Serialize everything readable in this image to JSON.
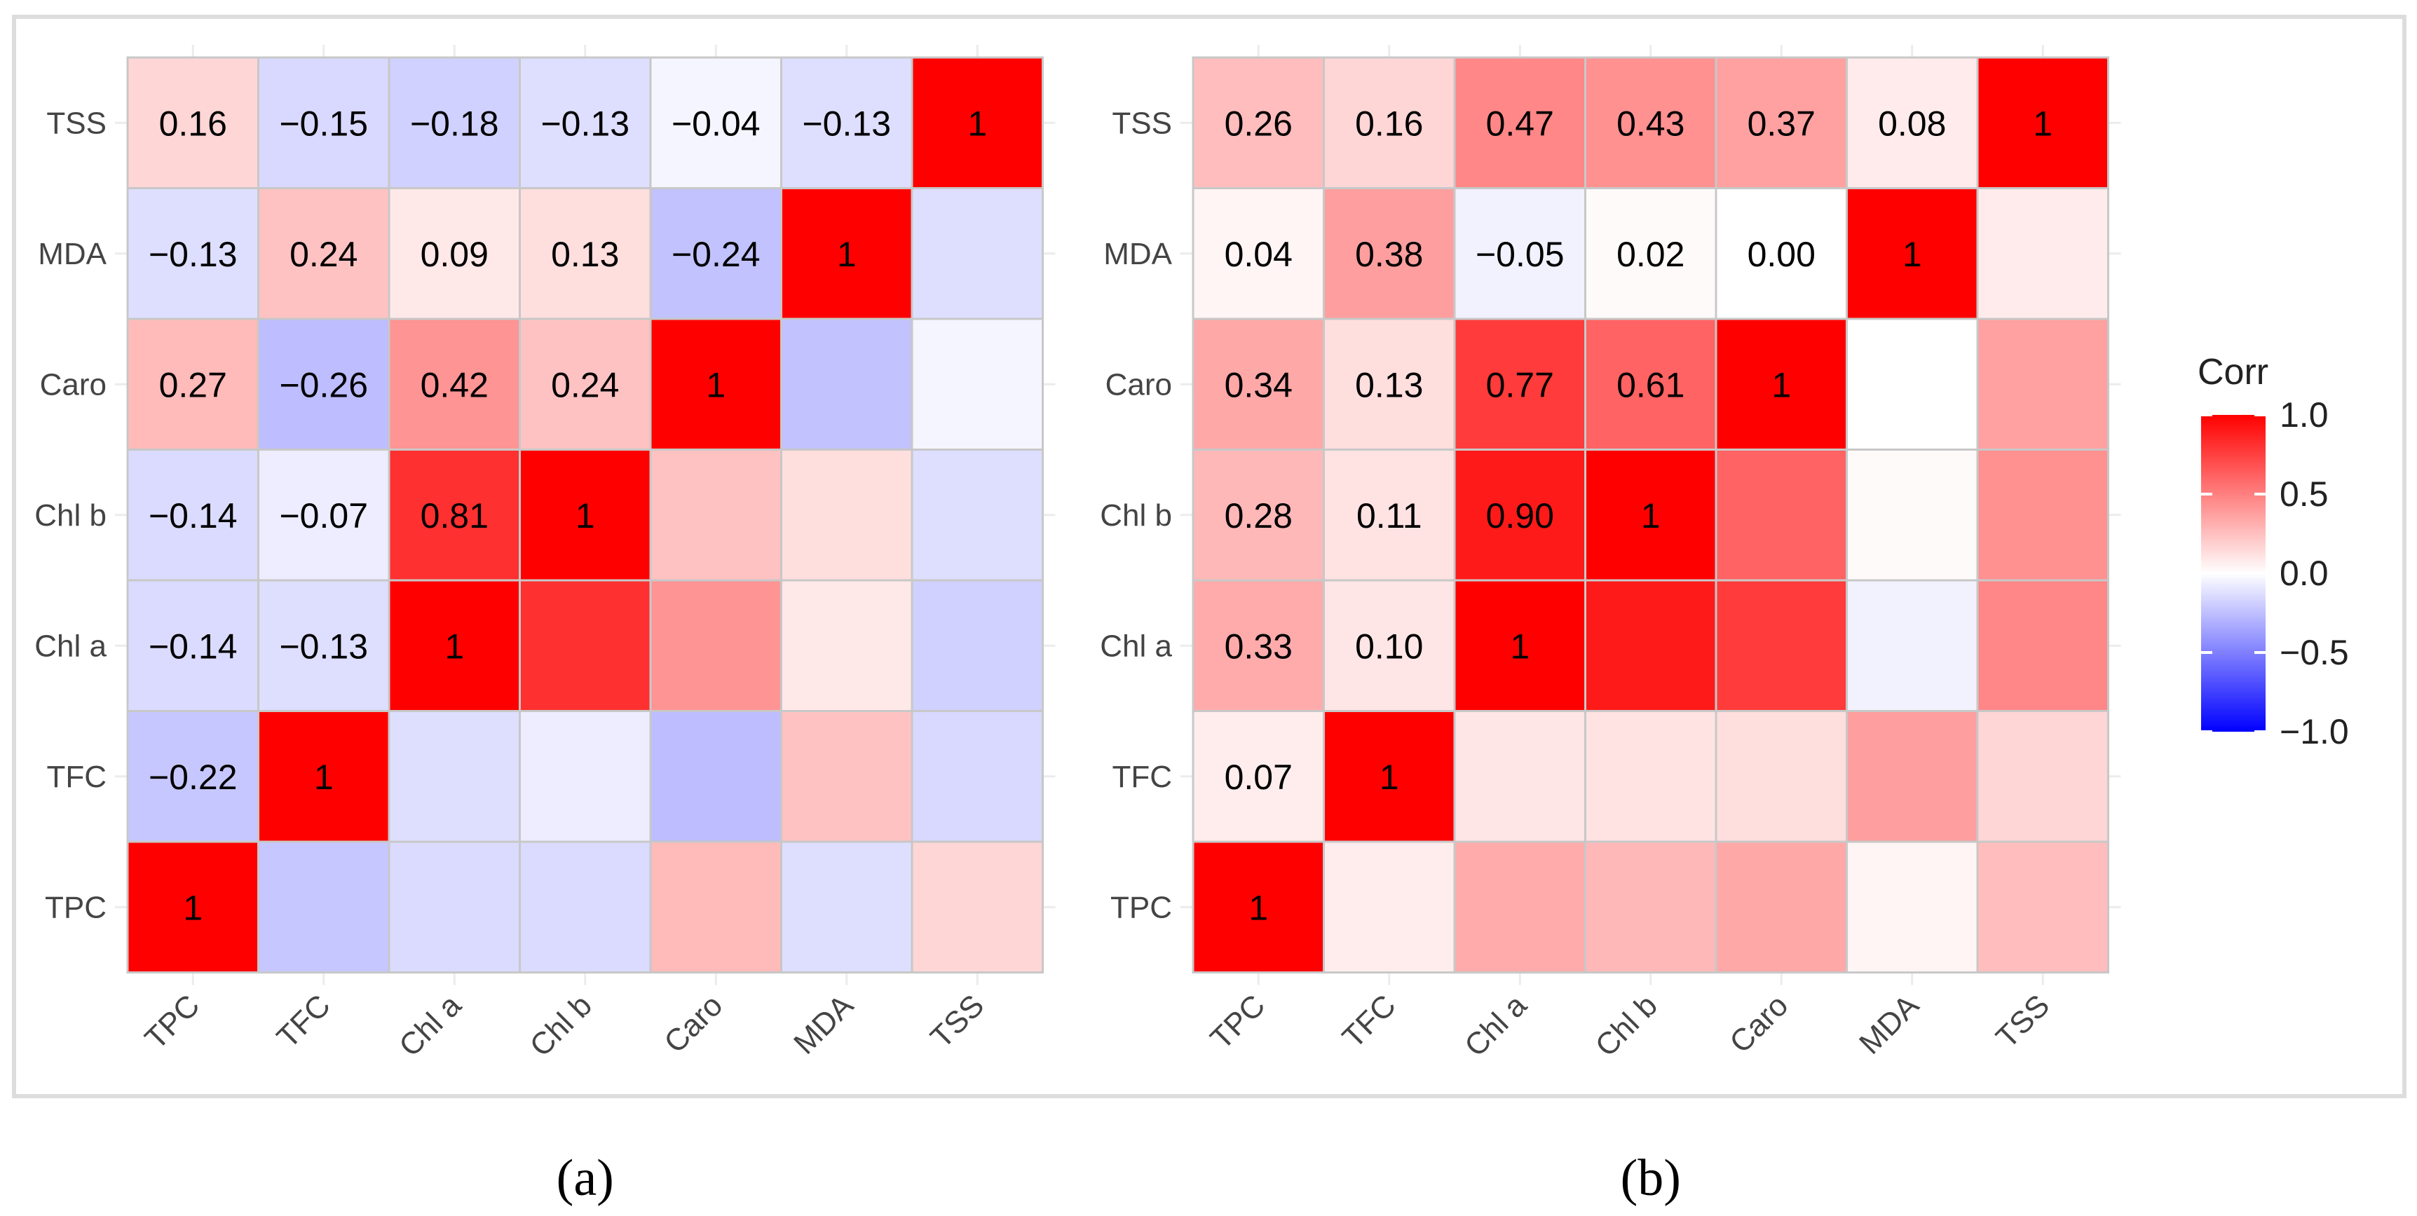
{
  "figure": {
    "legend_title": "Corr",
    "legend_ticks": [
      1.0,
      0.5,
      0.0,
      -0.5,
      -1.0
    ],
    "legend_tick_labels": [
      "1.0",
      "0.5",
      "0.0",
      "−0.5",
      "−1.0"
    ],
    "colors": {
      "negative": "#0000ff",
      "zero": "#ffffff",
      "positive": "#ff0000",
      "grid": "#c8c8c8",
      "frame": "#e0e0e0"
    }
  },
  "chart_data": [
    {
      "type": "heatmap",
      "panel_label": "(a)",
      "variables": [
        "TPC",
        "TFC",
        "Chl a",
        "Chl b",
        "Caro",
        "MDA",
        "TSS"
      ],
      "matrix": [
        [
          1.0,
          -0.22,
          -0.14,
          -0.14,
          0.27,
          -0.13,
          0.16
        ],
        [
          -0.22,
          1.0,
          -0.13,
          -0.07,
          -0.26,
          0.24,
          -0.15
        ],
        [
          -0.14,
          -0.13,
          1.0,
          0.81,
          0.42,
          0.09,
          -0.18
        ],
        [
          -0.14,
          -0.07,
          0.81,
          1.0,
          0.24,
          0.13,
          -0.13
        ],
        [
          0.27,
          -0.26,
          0.42,
          0.24,
          1.0,
          -0.24,
          -0.04
        ],
        [
          -0.13,
          0.24,
          0.09,
          0.13,
          -0.24,
          1.0,
          -0.13
        ],
        [
          0.16,
          -0.15,
          -0.18,
          -0.13,
          -0.04,
          -0.13,
          1.0
        ]
      ],
      "labels_shown": "lower-triangle",
      "color_range": [
        -1,
        1
      ]
    },
    {
      "type": "heatmap",
      "panel_label": "(b)",
      "variables": [
        "TPC",
        "TFC",
        "Chl a",
        "Chl b",
        "Caro",
        "MDA",
        "TSS"
      ],
      "matrix": [
        [
          1.0,
          0.07,
          0.33,
          0.28,
          0.34,
          0.04,
          0.26
        ],
        [
          0.07,
          1.0,
          0.1,
          0.11,
          0.13,
          0.38,
          0.16
        ],
        [
          0.33,
          0.1,
          1.0,
          0.9,
          0.77,
          -0.05,
          0.47
        ],
        [
          0.28,
          0.11,
          0.9,
          1.0,
          0.61,
          0.02,
          0.43
        ],
        [
          0.34,
          0.13,
          0.77,
          0.61,
          1.0,
          0.0,
          0.37
        ],
        [
          0.04,
          0.38,
          -0.05,
          0.02,
          0.0,
          1.0,
          0.08
        ],
        [
          0.26,
          0.16,
          0.47,
          0.43,
          0.37,
          0.08,
          1.0
        ]
      ],
      "labels_shown": "lower-triangle",
      "color_range": [
        -1,
        1
      ]
    }
  ]
}
